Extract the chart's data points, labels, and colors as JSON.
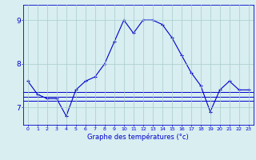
{
  "xlabel": "Graphe des températures (°c)",
  "background_color": "#d8eef0",
  "line_color": "#0000cc",
  "grid_color": "#aacccc",
  "x_values": [
    0,
    1,
    2,
    3,
    4,
    5,
    6,
    7,
    8,
    9,
    10,
    11,
    12,
    13,
    14,
    15,
    16,
    17,
    18,
    19,
    20,
    21,
    22,
    23
  ],
  "main_y": [
    7.6,
    7.3,
    7.2,
    7.2,
    6.8,
    7.4,
    7.6,
    7.7,
    8.0,
    8.5,
    9.0,
    8.7,
    9.0,
    9.0,
    8.9,
    8.6,
    8.2,
    7.8,
    7.5,
    6.9,
    7.4,
    7.6,
    7.4,
    7.4
  ],
  "flat1_y": 7.15,
  "flat2_y": 7.25,
  "flat3_y": 7.35,
  "ylim": [
    6.6,
    9.35
  ],
  "yticks": [
    7,
    8,
    9
  ],
  "xticks": [
    0,
    1,
    2,
    3,
    4,
    5,
    6,
    7,
    8,
    9,
    10,
    11,
    12,
    13,
    14,
    15,
    16,
    17,
    18,
    19,
    20,
    21,
    22,
    23
  ]
}
